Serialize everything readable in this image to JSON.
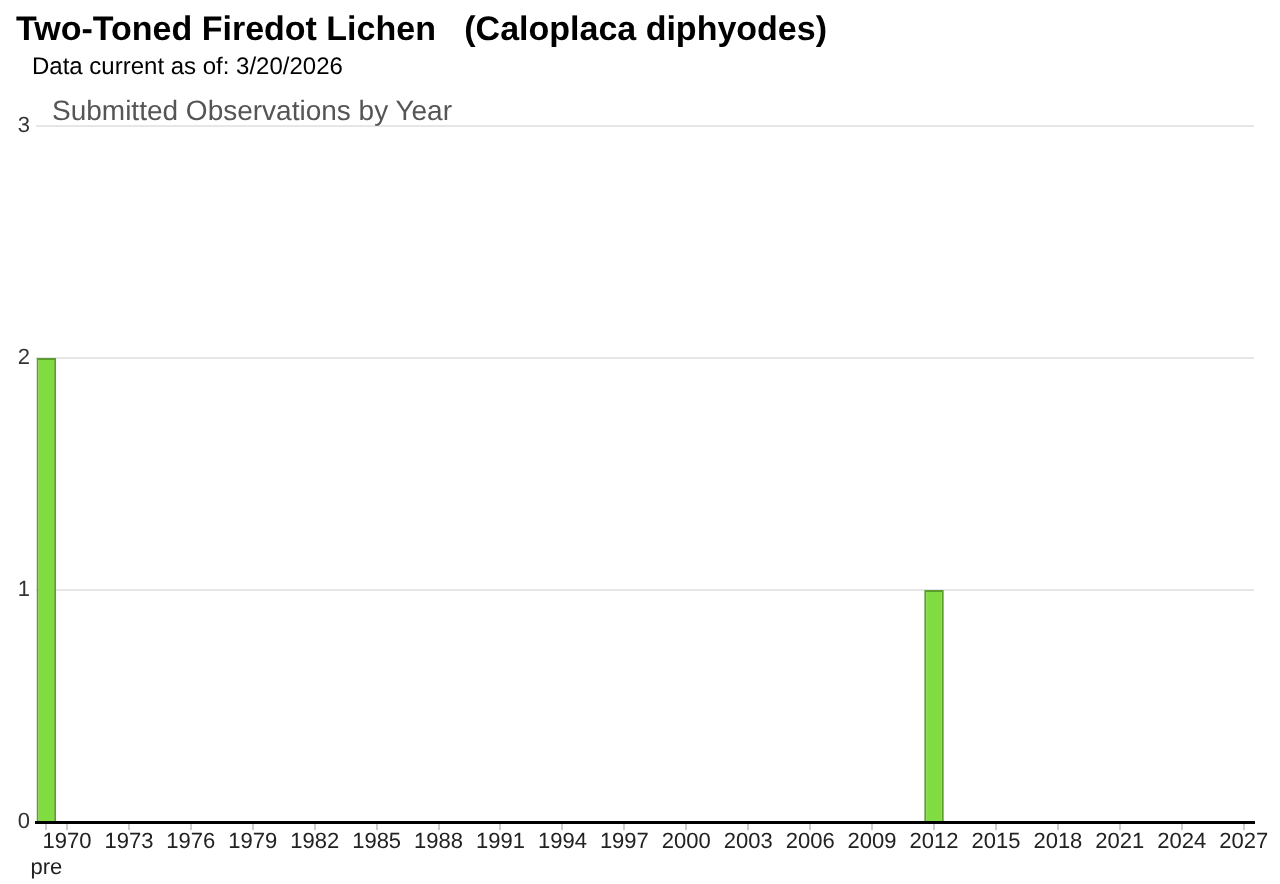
{
  "chart_data": {
    "type": "bar",
    "title": "Two-Toned Firedot Lichen   (Caloplaca diphyodes)",
    "subtitle": "Submitted Observations by Year",
    "annotations": [
      "Data current as of: 3/20/2026"
    ],
    "categories": [
      "pre",
      "1970",
      null,
      null,
      "1973",
      null,
      null,
      "1976",
      null,
      null,
      "1979",
      null,
      null,
      "1982",
      null,
      null,
      "1985",
      null,
      null,
      "1988",
      null,
      null,
      "1991",
      null,
      null,
      "1994",
      null,
      null,
      "1997",
      null,
      null,
      "2000",
      null,
      null,
      "2003",
      null,
      null,
      "2006",
      null,
      null,
      "2009",
      null,
      null,
      "2012",
      null,
      null,
      "2015",
      null,
      null,
      "2018",
      null,
      null,
      "2021",
      null,
      null,
      "2024",
      null,
      null,
      "2027"
    ],
    "values": [
      2,
      0,
      0,
      0,
      0,
      0,
      0,
      0,
      0,
      0,
      0,
      0,
      0,
      0,
      0,
      0,
      0,
      0,
      0,
      0,
      0,
      0,
      0,
      0,
      0,
      0,
      0,
      0,
      0,
      0,
      0,
      0,
      0,
      0,
      0,
      0,
      0,
      0,
      0,
      0,
      0,
      0,
      0,
      1,
      0,
      0,
      0,
      0,
      0,
      0,
      0,
      0,
      0,
      0,
      0,
      0,
      0,
      0,
      0
    ],
    "color": "#80dc40",
    "ylim": [
      0,
      3
    ],
    "yticks": [
      0,
      1,
      2,
      3
    ],
    "grid": "y"
  }
}
